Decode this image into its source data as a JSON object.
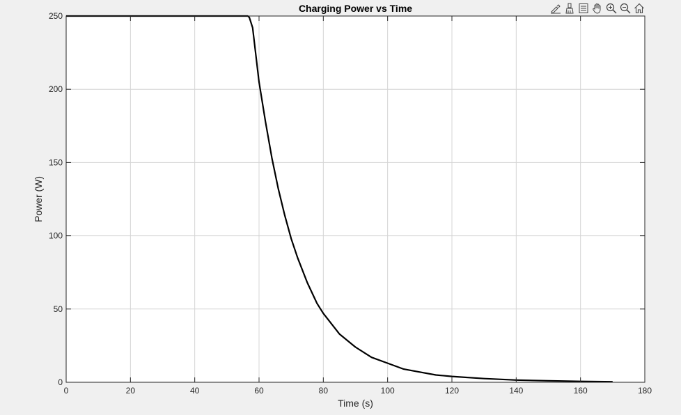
{
  "figure": {
    "background": "#f0f0f0",
    "axes_background": "#ffffff",
    "line_color": "#000000",
    "grid_color": "#d4d4d4"
  },
  "toolbar": {
    "icons": [
      "edit-plot-icon",
      "brush-icon",
      "legend-icon",
      "pan-icon",
      "zoom-in-icon",
      "zoom-out-icon",
      "home-icon"
    ]
  },
  "chart_data": {
    "type": "line",
    "title": "Charging Power vs Time",
    "xlabel": "Time (s)",
    "ylabel": "Power (W)",
    "xlim": [
      0,
      180
    ],
    "ylim": [
      0,
      250
    ],
    "xticks": [
      0,
      20,
      40,
      60,
      80,
      100,
      120,
      140,
      160,
      180
    ],
    "yticks": [
      0,
      50,
      100,
      150,
      200,
      250
    ],
    "grid": true,
    "series": [
      {
        "color": "#000000",
        "x": [
          0,
          20,
          40,
          56.5,
          57,
          58,
          60,
          62,
          64,
          66,
          68,
          70,
          72,
          75,
          78,
          80,
          85,
          90,
          95,
          100,
          105,
          110,
          115,
          120,
          130,
          140,
          150,
          160,
          170
        ],
        "y": [
          250,
          250,
          250,
          250,
          249,
          242,
          205,
          178,
          153,
          132,
          114,
          98,
          85,
          68,
          54,
          47,
          33,
          24,
          17,
          13,
          9,
          7,
          5,
          4,
          2.5,
          1.5,
          1,
          0.6,
          0.4
        ]
      }
    ]
  }
}
